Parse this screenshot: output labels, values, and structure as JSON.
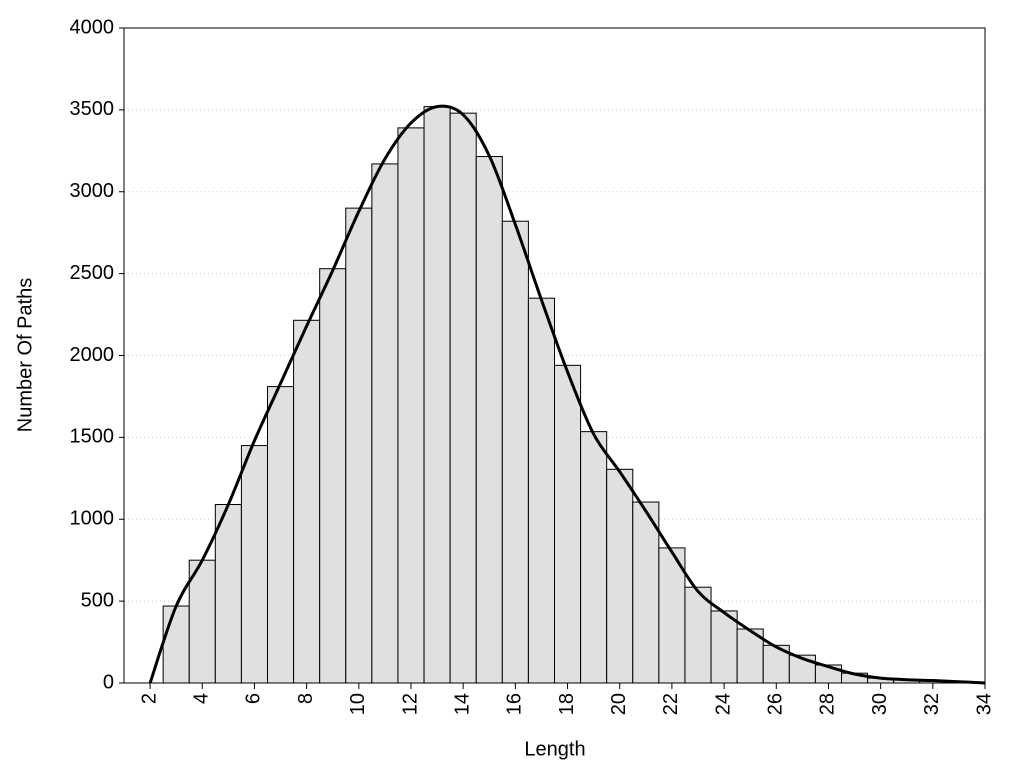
{
  "chart_data": {
    "type": "histogram",
    "xlabel": "Length",
    "ylabel": "Number Of Paths",
    "bins": [
      2.5,
      3.5,
      4.5,
      5.5,
      6.5,
      7.5,
      8.5,
      9.5,
      10.5,
      11.5,
      12.5,
      13.5,
      14.5,
      15.5,
      16.5,
      17.5,
      18.5,
      19.5,
      20.5,
      21.5,
      22.5,
      23.5,
      24.5,
      25.5,
      26.5,
      27.5,
      28.5,
      29.5,
      30.5,
      31.5,
      32.5,
      33.5
    ],
    "values": [
      470,
      750,
      1090,
      1450,
      1810,
      2215,
      2530,
      2900,
      3170,
      3390,
      3520,
      3480,
      3215,
      2820,
      2350,
      1940,
      1535,
      1305,
      1105,
      825,
      585,
      440,
      330,
      230,
      170,
      110,
      60,
      30,
      20,
      12,
      5
    ],
    "bar_color": "#e0e0e0",
    "edge_color": "#000000",
    "curve": {
      "color": "#000000",
      "x": [
        2,
        3,
        4,
        5,
        6,
        7,
        8,
        9,
        10,
        11,
        12,
        13,
        14,
        15,
        16,
        17,
        18,
        19,
        20,
        21,
        22,
        23,
        24,
        25,
        26,
        27,
        28,
        29,
        30,
        31,
        32,
        33,
        34
      ],
      "values": [
        0,
        470,
        750,
        1090,
        1480,
        1830,
        2180,
        2520,
        2880,
        3200,
        3420,
        3520,
        3470,
        3220,
        2800,
        2340,
        1900,
        1520,
        1290,
        1050,
        800,
        560,
        430,
        320,
        220,
        150,
        100,
        55,
        30,
        20,
        15,
        8,
        0
      ]
    },
    "xlim": [
      1,
      34
    ],
    "ylim": [
      0,
      4000
    ],
    "xticks": [
      2,
      4,
      6,
      8,
      10,
      12,
      14,
      16,
      18,
      20,
      22,
      24,
      26,
      28,
      30,
      32,
      34
    ],
    "yticks": [
      0,
      500,
      1000,
      1500,
      2000,
      2500,
      3000,
      3500,
      4000
    ],
    "grid": true
  }
}
